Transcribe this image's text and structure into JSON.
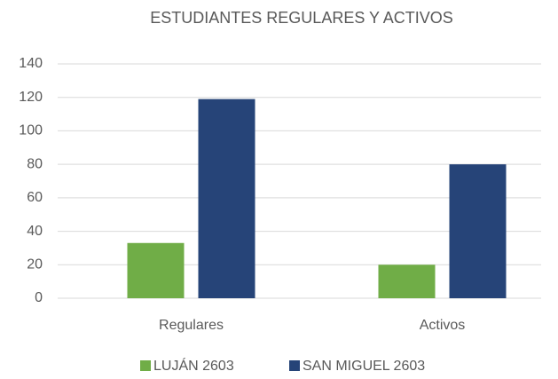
{
  "chart_data": {
    "type": "bar",
    "title": "ESTUDIANTES REGULARES Y ACTIVOS",
    "categories": [
      "Regulares",
      "Activos"
    ],
    "series": [
      {
        "name": "LUJÁN 2603",
        "color": "#70ad47",
        "values": [
          33,
          20
        ]
      },
      {
        "name": "SAN MIGUEL 2603",
        "color": "#264478",
        "values": [
          119,
          80
        ]
      }
    ],
    "ylim": [
      0,
      140
    ],
    "yticks": [
      0,
      20,
      40,
      60,
      80,
      100,
      120,
      140
    ],
    "grid": true,
    "legend": "bottom"
  }
}
